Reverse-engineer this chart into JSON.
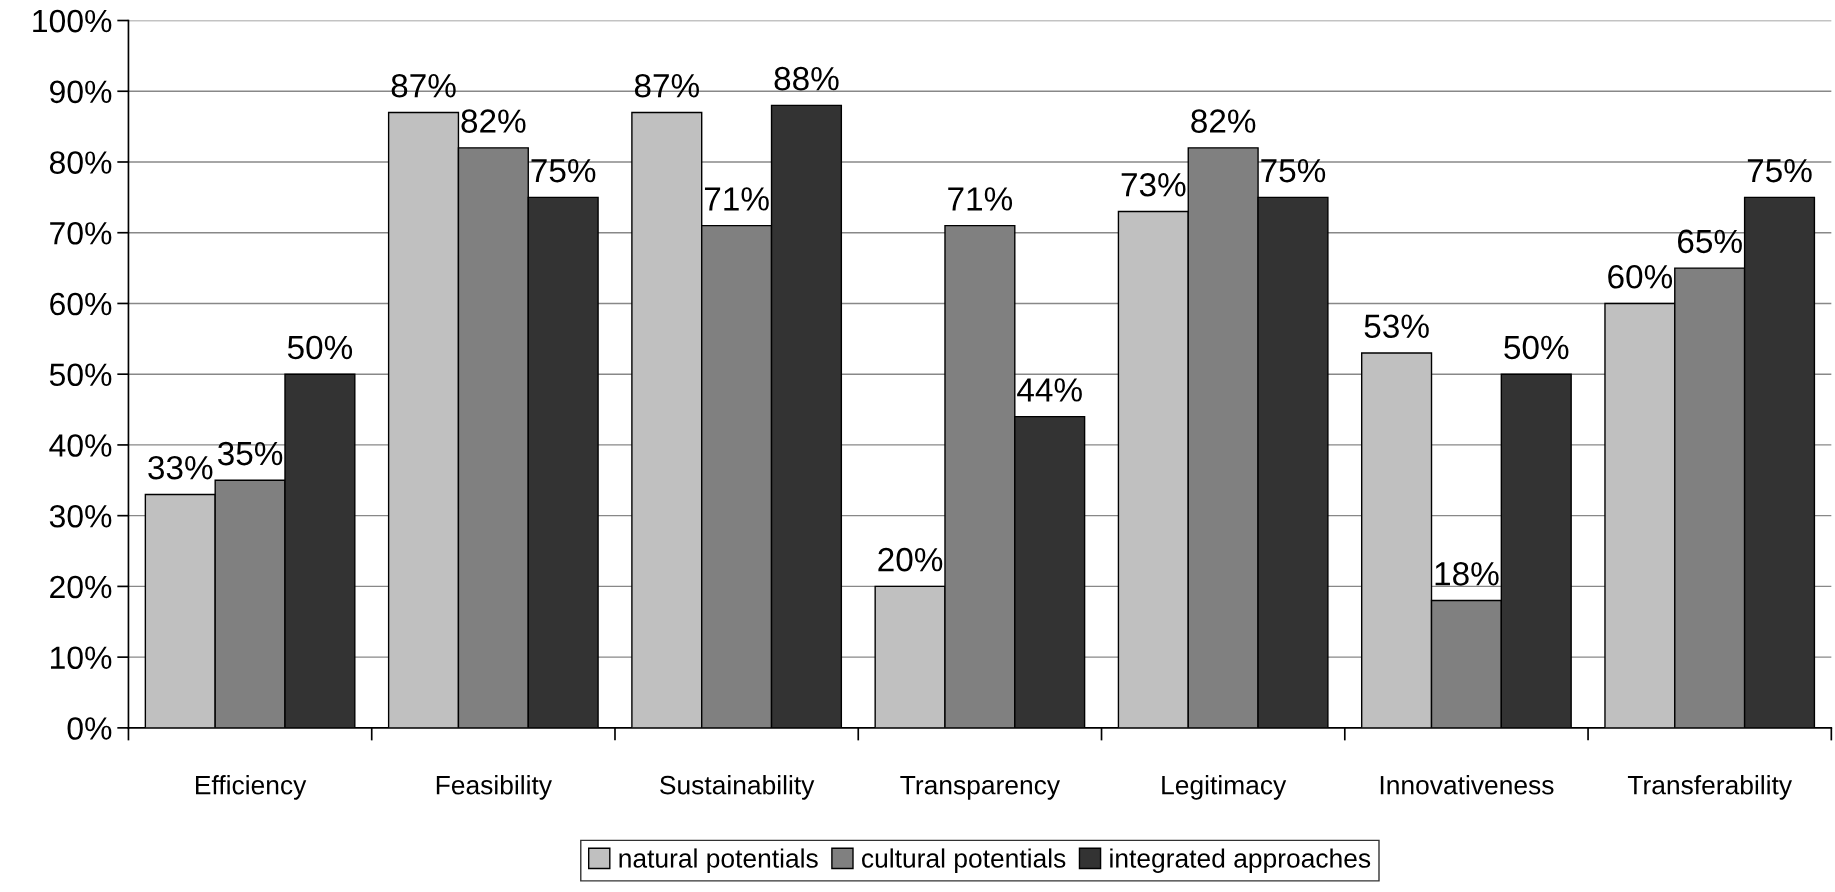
{
  "chart_data": {
    "type": "bar",
    "categories": [
      "Efficiency",
      "Feasibility",
      "Sustainability",
      "Transparency",
      "Legitimacy",
      "Innovativeness",
      "Transferability"
    ],
    "series": [
      {
        "name": "natural potentials",
        "color": "#c0c0c0",
        "values": [
          33,
          87,
          87,
          20,
          73,
          53,
          60
        ],
        "value_labels": [
          "33%",
          "87%",
          "87%",
          "20%",
          "73%",
          "53%",
          "60%"
        ]
      },
      {
        "name": "cultural potentials",
        "color": "#808080",
        "values": [
          35,
          82,
          71,
          71,
          82,
          18,
          65
        ],
        "value_labels": [
          "35%",
          "82%",
          "71%",
          "71%",
          "82%",
          "18%",
          "65%"
        ]
      },
      {
        "name": "integrated approaches",
        "color": "#333333",
        "values": [
          50,
          75,
          88,
          44,
          75,
          50,
          75
        ],
        "value_labels": [
          "50%",
          "75%",
          "88%",
          "44%",
          "75%",
          "50%",
          "75%"
        ]
      }
    ],
    "ylim": [
      0,
      100
    ],
    "yticks": [
      {
        "value": 0,
        "label": "0%"
      },
      {
        "value": 10,
        "label": "10%"
      },
      {
        "value": 20,
        "label": "20%"
      },
      {
        "value": 30,
        "label": "30%"
      },
      {
        "value": 40,
        "label": "40%"
      },
      {
        "value": 50,
        "label": "50%"
      },
      {
        "value": 60,
        "label": "60%"
      },
      {
        "value": 70,
        "label": "70%"
      },
      {
        "value": 80,
        "label": "80%"
      },
      {
        "value": 90,
        "label": "90%"
      },
      {
        "value": 100,
        "label": "100%"
      }
    ],
    "grid": "y",
    "legend": "bottom"
  }
}
